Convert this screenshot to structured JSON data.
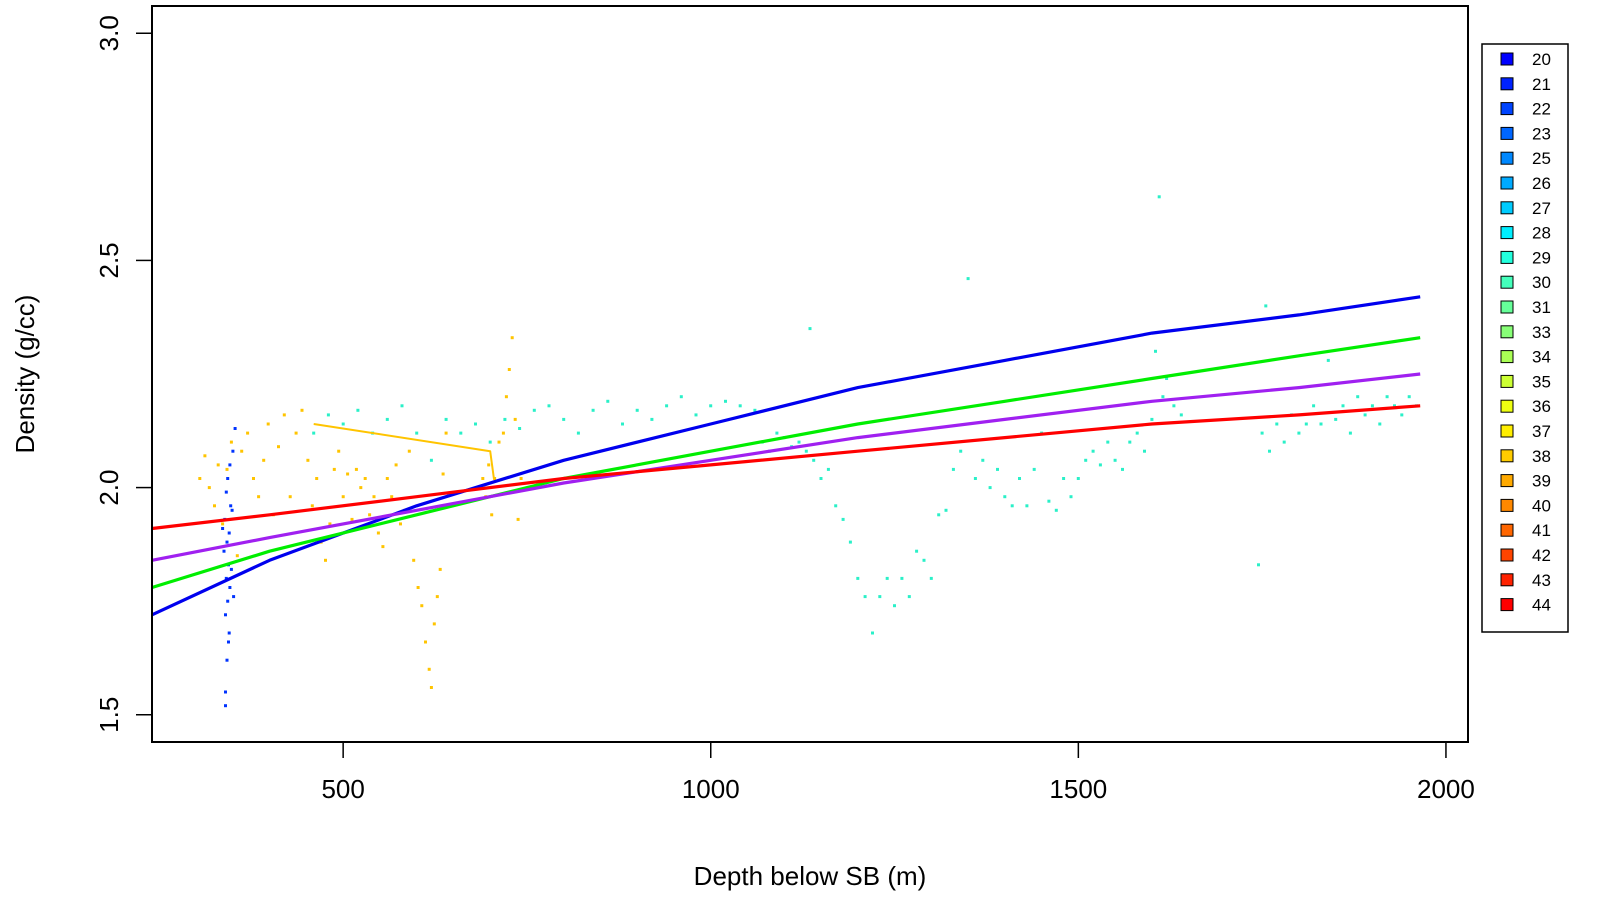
{
  "chart_data": {
    "type": "scatter",
    "title": "",
    "xlabel": "Depth below SB (m)",
    "ylabel": "Density (g/cc)",
    "xlim": [
      240,
      2030
    ],
    "ylim": [
      1.44,
      3.06
    ],
    "x_ticks": [
      500,
      1000,
      1500,
      2000
    ],
    "x_tick_labels": [
      "500",
      "1000",
      "1500",
      "2000"
    ],
    "y_ticks": [
      1.5,
      2.0,
      2.5,
      3.0
    ],
    "y_tick_labels": [
      "1.5",
      "2.0",
      "2.5",
      "3.0"
    ],
    "grid": false,
    "legend_position": "right",
    "legend": [
      {
        "label": "20",
        "color": "#0000FF"
      },
      {
        "label": "21",
        "color": "#0022FF"
      },
      {
        "label": "22",
        "color": "#0044FF"
      },
      {
        "label": "23",
        "color": "#0066FF"
      },
      {
        "label": "25",
        "color": "#0088FF"
      },
      {
        "label": "26",
        "color": "#00AAFF"
      },
      {
        "label": "27",
        "color": "#00CCFF"
      },
      {
        "label": "28",
        "color": "#00EEFF"
      },
      {
        "label": "29",
        "color": "#22FFDD"
      },
      {
        "label": "30",
        "color": "#44FFBB"
      },
      {
        "label": "31",
        "color": "#66FF99"
      },
      {
        "label": "33",
        "color": "#88FF77"
      },
      {
        "label": "34",
        "color": "#AAFF55"
      },
      {
        "label": "35",
        "color": "#CCFF33"
      },
      {
        "label": "36",
        "color": "#EEFF11"
      },
      {
        "label": "37",
        "color": "#FFEE00"
      },
      {
        "label": "38",
        "color": "#FFCC00"
      },
      {
        "label": "39",
        "color": "#FFAA00"
      },
      {
        "label": "40",
        "color": "#FF8800"
      },
      {
        "label": "41",
        "color": "#FF6600"
      },
      {
        "label": "42",
        "color": "#FF4400"
      },
      {
        "label": "43",
        "color": "#FF2200"
      },
      {
        "label": "44",
        "color": "#FF0000"
      }
    ],
    "scatter_series": [
      {
        "color": "#0033FF",
        "points": [
          [
            340,
            1.52
          ],
          [
            340,
            1.55
          ],
          [
            342,
            1.62
          ],
          [
            344,
            1.66
          ],
          [
            345,
            1.68
          ],
          [
            340,
            1.72
          ],
          [
            343,
            1.75
          ],
          [
            346,
            1.78
          ],
          [
            341,
            1.8
          ],
          [
            344,
            1.83
          ],
          [
            338,
            1.86
          ],
          [
            342,
            1.88
          ],
          [
            345,
            1.9
          ],
          [
            339,
            1.93
          ],
          [
            347,
            1.96
          ],
          [
            341,
            1.99
          ],
          [
            343,
            2.02
          ],
          [
            346,
            2.05
          ],
          [
            350,
            2.08
          ],
          [
            353,
            2.13
          ],
          [
            348,
            1.82
          ],
          [
            351,
            1.76
          ],
          [
            336,
            1.91
          ],
          [
            349,
            1.95
          ]
        ]
      },
      {
        "color": "#FFC400",
        "points": [
          [
            305,
            2.02
          ],
          [
            312,
            2.07
          ],
          [
            318,
            2.0
          ],
          [
            325,
            1.96
          ],
          [
            330,
            2.05
          ],
          [
            336,
            1.92
          ],
          [
            342,
            2.04
          ],
          [
            348,
            2.1
          ],
          [
            356,
            1.85
          ],
          [
            362,
            2.08
          ],
          [
            370,
            2.12
          ],
          [
            378,
            2.02
          ],
          [
            385,
            1.98
          ],
          [
            392,
            2.06
          ],
          [
            398,
            2.14
          ],
          [
            405,
            1.94
          ],
          [
            412,
            2.09
          ],
          [
            420,
            2.16
          ],
          [
            428,
            1.98
          ],
          [
            436,
            2.12
          ],
          [
            444,
            2.17
          ],
          [
            452,
            2.06
          ],
          [
            458,
            1.96
          ],
          [
            464,
            2.02
          ],
          [
            470,
            1.88
          ],
          [
            476,
            1.84
          ],
          [
            482,
            1.92
          ],
          [
            488,
            2.04
          ],
          [
            494,
            2.08
          ],
          [
            500,
            1.98
          ],
          [
            506,
            2.03
          ],
          [
            512,
            1.93
          ],
          [
            518,
            2.04
          ],
          [
            524,
            2.0
          ],
          [
            530,
            2.02
          ],
          [
            536,
            1.94
          ],
          [
            542,
            1.98
          ],
          [
            548,
            1.9
          ],
          [
            554,
            1.87
          ],
          [
            560,
            2.02
          ],
          [
            566,
            1.98
          ],
          [
            572,
            2.05
          ],
          [
            578,
            1.92
          ],
          [
            584,
            1.95
          ],
          [
            590,
            2.08
          ],
          [
            596,
            1.84
          ],
          [
            602,
            1.78
          ],
          [
            607,
            1.74
          ],
          [
            612,
            1.66
          ],
          [
            617,
            1.6
          ],
          [
            620,
            1.56
          ],
          [
            624,
            1.7
          ],
          [
            628,
            1.76
          ],
          [
            632,
            1.82
          ],
          [
            636,
            2.03
          ],
          [
            640,
            2.12
          ],
          [
            690,
            2.02
          ],
          [
            694,
            1.98
          ],
          [
            698,
            2.05
          ],
          [
            702,
            1.94
          ],
          [
            706,
            2.02
          ],
          [
            712,
            2.1
          ],
          [
            718,
            2.12
          ],
          [
            722,
            2.2
          ],
          [
            726,
            2.26
          ],
          [
            730,
            2.33
          ],
          [
            734,
            2.15
          ],
          [
            738,
            1.93
          ],
          [
            742,
            2.02
          ]
        ]
      },
      {
        "color": "#2AF0C8",
        "points": [
          [
            460,
            2.12
          ],
          [
            480,
            2.16
          ],
          [
            500,
            2.14
          ],
          [
            520,
            2.17
          ],
          [
            540,
            2.12
          ],
          [
            560,
            2.15
          ],
          [
            580,
            2.18
          ],
          [
            600,
            2.12
          ],
          [
            620,
            2.06
          ],
          [
            640,
            2.15
          ],
          [
            660,
            2.12
          ],
          [
            680,
            2.14
          ],
          [
            700,
            2.1
          ],
          [
            720,
            2.15
          ],
          [
            740,
            2.13
          ],
          [
            760,
            2.17
          ],
          [
            780,
            2.18
          ],
          [
            800,
            2.15
          ],
          [
            820,
            2.12
          ],
          [
            840,
            2.17
          ],
          [
            860,
            2.19
          ],
          [
            880,
            2.14
          ],
          [
            900,
            2.17
          ],
          [
            920,
            2.15
          ],
          [
            940,
            2.18
          ],
          [
            960,
            2.2
          ],
          [
            980,
            2.16
          ],
          [
            1000,
            2.18
          ],
          [
            1020,
            2.19
          ],
          [
            1040,
            2.18
          ],
          [
            1060,
            2.17
          ],
          [
            1070,
            2.1
          ],
          [
            1080,
            2.08
          ],
          [
            1090,
            2.12
          ],
          [
            1100,
            2.11
          ],
          [
            1110,
            2.09
          ],
          [
            1120,
            2.1
          ],
          [
            1130,
            2.08
          ],
          [
            1135,
            2.35
          ],
          [
            1140,
            2.06
          ],
          [
            1150,
            2.02
          ],
          [
            1160,
            2.04
          ],
          [
            1170,
            1.96
          ],
          [
            1180,
            1.93
          ],
          [
            1190,
            1.88
          ],
          [
            1200,
            1.8
          ],
          [
            1210,
            1.76
          ],
          [
            1220,
            1.68
          ],
          [
            1230,
            1.76
          ],
          [
            1240,
            1.8
          ],
          [
            1250,
            1.74
          ],
          [
            1260,
            1.8
          ],
          [
            1270,
            1.76
          ],
          [
            1280,
            1.86
          ],
          [
            1290,
            1.84
          ],
          [
            1300,
            1.8
          ],
          [
            1310,
            1.94
          ],
          [
            1320,
            1.95
          ],
          [
            1330,
            2.04
          ],
          [
            1340,
            2.08
          ],
          [
            1350,
            2.46
          ],
          [
            1360,
            2.02
          ],
          [
            1370,
            2.06
          ],
          [
            1380,
            2.0
          ],
          [
            1390,
            2.04
          ],
          [
            1400,
            1.98
          ],
          [
            1410,
            1.96
          ],
          [
            1420,
            2.02
          ],
          [
            1430,
            1.96
          ],
          [
            1440,
            2.04
          ],
          [
            1450,
            2.12
          ],
          [
            1460,
            1.97
          ],
          [
            1470,
            1.95
          ],
          [
            1480,
            2.02
          ],
          [
            1490,
            1.98
          ],
          [
            1500,
            2.02
          ],
          [
            1510,
            2.06
          ],
          [
            1520,
            2.08
          ],
          [
            1530,
            2.05
          ],
          [
            1540,
            2.1
          ],
          [
            1550,
            2.06
          ],
          [
            1560,
            2.04
          ],
          [
            1570,
            2.1
          ],
          [
            1580,
            2.12
          ],
          [
            1590,
            2.08
          ],
          [
            1600,
            2.15
          ],
          [
            1605,
            2.3
          ],
          [
            1610,
            2.64
          ],
          [
            1615,
            2.2
          ],
          [
            1620,
            2.24
          ],
          [
            1630,
            2.18
          ],
          [
            1640,
            2.16
          ],
          [
            1750,
            2.12
          ],
          [
            1755,
            2.4
          ],
          [
            1760,
            2.08
          ],
          [
            1770,
            2.14
          ],
          [
            1780,
            2.1
          ],
          [
            1790,
            2.16
          ],
          [
            1800,
            2.12
          ],
          [
            1810,
            2.14
          ],
          [
            1820,
            2.18
          ],
          [
            1830,
            2.14
          ],
          [
            1840,
            2.28
          ],
          [
            1850,
            2.15
          ],
          [
            1860,
            2.18
          ],
          [
            1870,
            2.12
          ],
          [
            1880,
            2.2
          ],
          [
            1890,
            2.16
          ],
          [
            1900,
            2.18
          ],
          [
            1910,
            2.14
          ],
          [
            1920,
            2.2
          ],
          [
            1930,
            2.18
          ],
          [
            1940,
            2.16
          ],
          [
            1950,
            2.2
          ],
          [
            1960,
            2.18
          ],
          [
            1745,
            1.83
          ]
        ]
      }
    ],
    "lines": [
      {
        "color": "#FFC400",
        "x": [
          460,
          700,
          705
        ],
        "y": [
          2.14,
          2.08,
          2.02
        ]
      },
      {
        "color": "#0000EE",
        "x": [
          240,
          400,
          600,
          800,
          1000,
          1200,
          1400,
          1600,
          1800,
          1965
        ],
        "y": [
          1.72,
          1.84,
          1.96,
          2.06,
          2.14,
          2.22,
          2.28,
          2.34,
          2.38,
          2.42
        ]
      },
      {
        "color": "#00EE00",
        "x": [
          240,
          400,
          600,
          800,
          1000,
          1200,
          1400,
          1600,
          1800,
          1965
        ],
        "y": [
          1.78,
          1.86,
          1.94,
          2.02,
          2.08,
          2.14,
          2.19,
          2.24,
          2.29,
          2.33
        ]
      },
      {
        "color": "#A020F0",
        "x": [
          240,
          400,
          600,
          800,
          1000,
          1200,
          1400,
          1600,
          1800,
          1965
        ],
        "y": [
          1.84,
          1.89,
          1.95,
          2.01,
          2.06,
          2.11,
          2.15,
          2.19,
          2.22,
          2.25
        ]
      },
      {
        "color": "#FF0000",
        "x": [
          240,
          400,
          600,
          800,
          1000,
          1200,
          1400,
          1600,
          1800,
          1965
        ],
        "y": [
          1.91,
          1.94,
          1.98,
          2.02,
          2.05,
          2.08,
          2.11,
          2.14,
          2.16,
          2.18
        ]
      }
    ]
  }
}
